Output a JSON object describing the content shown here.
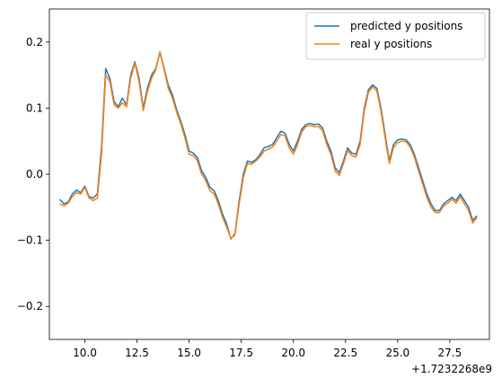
{
  "chart_data": {
    "type": "line",
    "title": "",
    "xlabel": "",
    "ylabel": "",
    "x_offset_label": "+1.7232268e9",
    "xlim": [
      8.3,
      29.4
    ],
    "ylim": [
      -0.25,
      0.25
    ],
    "x_ticks": [
      10.0,
      12.5,
      15.0,
      17.5,
      20.0,
      22.5,
      25.0,
      27.5
    ],
    "x_tick_labels": [
      "10.0",
      "12.5",
      "15.0",
      "17.5",
      "20.0",
      "22.5",
      "25.0",
      "27.5"
    ],
    "y_ticks": [
      -0.2,
      -0.1,
      0.0,
      0.1,
      0.2
    ],
    "y_tick_labels": [
      "−0.2",
      "−0.1",
      "0.0",
      "0.1",
      "0.2"
    ],
    "grid": false,
    "legend_position": "top-right",
    "x": [
      8.8,
      9.0,
      9.2,
      9.4,
      9.6,
      9.8,
      10.0,
      10.2,
      10.4,
      10.6,
      10.8,
      11.0,
      11.2,
      11.4,
      11.6,
      11.8,
      12.0,
      12.2,
      12.4,
      12.6,
      12.8,
      13.0,
      13.2,
      13.4,
      13.6,
      13.8,
      14.0,
      14.2,
      14.4,
      14.6,
      14.8,
      15.0,
      15.2,
      15.4,
      15.6,
      15.8,
      16.0,
      16.2,
      16.4,
      16.6,
      16.8,
      17.0,
      17.2,
      17.4,
      17.6,
      17.8,
      18.0,
      18.2,
      18.4,
      18.6,
      18.8,
      19.0,
      19.2,
      19.4,
      19.6,
      19.8,
      20.0,
      20.2,
      20.4,
      20.6,
      20.8,
      21.0,
      21.2,
      21.4,
      21.6,
      21.8,
      22.0,
      22.2,
      22.4,
      22.6,
      22.8,
      23.0,
      23.2,
      23.4,
      23.6,
      23.8,
      24.0,
      24.2,
      24.4,
      24.6,
      24.8,
      25.0,
      25.2,
      25.4,
      25.6,
      25.8,
      26.0,
      26.2,
      26.4,
      26.6,
      26.8,
      27.0,
      27.2,
      27.4,
      27.6,
      27.8,
      28.0,
      28.2,
      28.4,
      28.6,
      28.8
    ],
    "series": [
      {
        "name": "predicted y positions",
        "color": "#1f77b4",
        "values": [
          -0.038,
          -0.045,
          -0.042,
          -0.03,
          -0.024,
          -0.028,
          -0.018,
          -0.034,
          -0.036,
          -0.03,
          0.04,
          0.16,
          0.145,
          0.11,
          0.102,
          0.115,
          0.105,
          0.15,
          0.17,
          0.145,
          0.1,
          0.13,
          0.15,
          0.16,
          0.185,
          0.16,
          0.135,
          0.12,
          0.098,
          0.08,
          0.06,
          0.035,
          0.032,
          0.025,
          0.005,
          -0.005,
          -0.02,
          -0.025,
          -0.04,
          -0.06,
          -0.075,
          -0.098,
          -0.09,
          -0.04,
          0.0,
          0.02,
          0.018,
          0.022,
          0.03,
          0.04,
          0.042,
          0.045,
          0.055,
          0.065,
          0.062,
          0.045,
          0.035,
          0.05,
          0.068,
          0.075,
          0.077,
          0.075,
          0.076,
          0.07,
          0.05,
          0.035,
          0.01,
          0.002,
          0.02,
          0.04,
          0.032,
          0.03,
          0.05,
          0.1,
          0.128,
          0.135,
          0.13,
          0.1,
          0.06,
          0.02,
          0.045,
          0.052,
          0.053,
          0.052,
          0.045,
          0.03,
          0.01,
          -0.01,
          -0.03,
          -0.045,
          -0.055,
          -0.055,
          -0.045,
          -0.04,
          -0.035,
          -0.04,
          -0.03,
          -0.04,
          -0.05,
          -0.07,
          -0.063
        ]
      },
      {
        "name": "real y positions",
        "color": "#ff7f0e",
        "values": [
          -0.045,
          -0.048,
          -0.044,
          -0.034,
          -0.028,
          -0.03,
          -0.02,
          -0.036,
          -0.04,
          -0.036,
          0.03,
          0.15,
          0.14,
          0.105,
          0.1,
          0.108,
          0.102,
          0.145,
          0.168,
          0.14,
          0.096,
          0.125,
          0.145,
          0.158,
          0.184,
          0.158,
          0.13,
          0.115,
          0.094,
          0.076,
          0.055,
          0.03,
          0.028,
          0.02,
          0.0,
          -0.01,
          -0.025,
          -0.03,
          -0.045,
          -0.065,
          -0.08,
          -0.097,
          -0.092,
          -0.045,
          -0.005,
          0.016,
          0.015,
          0.02,
          0.026,
          0.035,
          0.038,
          0.041,
          0.05,
          0.06,
          0.058,
          0.04,
          0.03,
          0.045,
          0.064,
          0.072,
          0.074,
          0.072,
          0.072,
          0.066,
          0.045,
          0.03,
          0.005,
          -0.002,
          0.016,
          0.036,
          0.028,
          0.026,
          0.045,
          0.095,
          0.124,
          0.132,
          0.126,
          0.095,
          0.055,
          0.016,
          0.04,
          0.048,
          0.05,
          0.049,
          0.041,
          0.026,
          0.005,
          -0.015,
          -0.035,
          -0.05,
          -0.058,
          -0.058,
          -0.048,
          -0.044,
          -0.038,
          -0.044,
          -0.034,
          -0.045,
          -0.055,
          -0.074,
          -0.066
        ]
      }
    ]
  }
}
